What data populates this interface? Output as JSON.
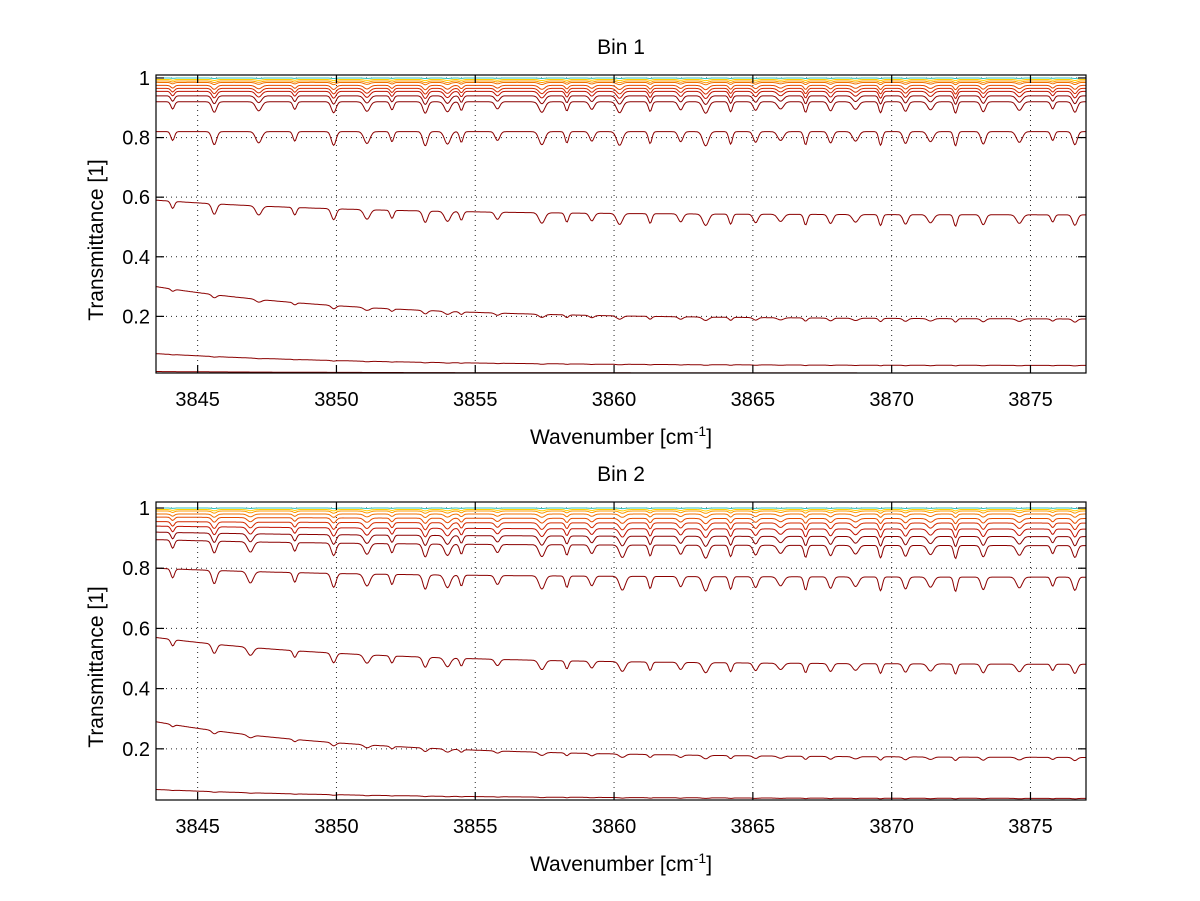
{
  "figure": {
    "background": "#ffffff",
    "line_colors": [
      "#8b0000",
      "#c01000",
      "#d42a00",
      "#e64c00",
      "#f07000",
      "#ff9a00",
      "#ffd000",
      "#30c0c0",
      "#3050d0"
    ]
  },
  "chart_data": [
    {
      "type": "line",
      "title": "Bin 1",
      "xlabel": "Wavenumber [cm",
      "xlabel_superscript": "-1",
      "xlabel_suffix": "]",
      "ylabel": "Transmittance [1]",
      "xlim": [
        3843.5,
        3877
      ],
      "ylim": [
        0.01,
        1.01
      ],
      "xticks": [
        3845,
        3850,
        3855,
        3860,
        3865,
        3870,
        3875
      ],
      "xtick_labels": [
        "3845",
        "3850",
        "3855",
        "3860",
        "3865",
        "3870",
        "3875"
      ],
      "yticks": [
        0.2,
        0.4,
        0.6,
        0.8,
        1
      ],
      "ytick_labels": [
        "0.2",
        "0.4",
        "0.6",
        "0.8",
        "1"
      ],
      "grid": true,
      "absorption_lines": [
        3844.1,
        3845.6,
        3847.2,
        3848.5,
        3849.9,
        3851.1,
        3852.0,
        3853.2,
        3854.0,
        3854.5,
        3855.8,
        3857.4,
        3858.3,
        3859.2,
        3860.2,
        3861.3,
        3862.4,
        3863.3,
        3864.2,
        3865.1,
        3866.0,
        3866.9,
        3867.8,
        3868.7,
        3869.6,
        3870.5,
        3871.4,
        3872.3,
        3873.3,
        3874.6,
        3875.8,
        3876.6
      ],
      "series": [
        {
          "baseline_start": 1.0,
          "baseline_end": 1.0,
          "depth": 0.002
        },
        {
          "baseline_start": 0.995,
          "baseline_end": 0.995,
          "depth": 0.004
        },
        {
          "baseline_start": 0.99,
          "baseline_end": 0.99,
          "depth": 0.006
        },
        {
          "baseline_start": 0.985,
          "baseline_end": 0.985,
          "depth": 0.008
        },
        {
          "baseline_start": 0.975,
          "baseline_end": 0.975,
          "depth": 0.015
        },
        {
          "baseline_start": 0.965,
          "baseline_end": 0.965,
          "depth": 0.02
        },
        {
          "baseline_start": 0.955,
          "baseline_end": 0.955,
          "depth": 0.025
        },
        {
          "baseline_start": 0.94,
          "baseline_end": 0.94,
          "depth": 0.03
        },
        {
          "baseline_start": 0.92,
          "baseline_end": 0.92,
          "depth": 0.04
        },
        {
          "baseline_start": 0.82,
          "baseline_end": 0.82,
          "depth": 0.05
        },
        {
          "baseline_start": 0.59,
          "baseline_end": 0.54,
          "depth": 0.04
        },
        {
          "baseline_start": 0.3,
          "baseline_end": 0.19,
          "depth": 0.012
        },
        {
          "baseline_start": 0.075,
          "baseline_end": 0.035,
          "depth": 0.002
        },
        {
          "baseline_start": 0.015,
          "baseline_end": 0.01,
          "depth": 0.0
        }
      ]
    },
    {
      "type": "line",
      "title": "Bin 2",
      "xlabel": "Wavenumber [cm",
      "xlabel_superscript": "-1",
      "xlabel_suffix": "]",
      "ylabel": "Transmittance [1]",
      "xlim": [
        3843.5,
        3877
      ],
      "ylim": [
        0.03,
        1.02
      ],
      "xticks": [
        3845,
        3850,
        3855,
        3860,
        3865,
        3870,
        3875
      ],
      "xtick_labels": [
        "3845",
        "3850",
        "3855",
        "3860",
        "3865",
        "3870",
        "3875"
      ],
      "yticks": [
        0.2,
        0.4,
        0.6,
        0.8,
        1
      ],
      "ytick_labels": [
        "0.2",
        "0.4",
        "0.6",
        "0.8",
        "1"
      ],
      "grid": true,
      "absorption_lines": [
        3844.1,
        3845.6,
        3846.9,
        3848.5,
        3849.9,
        3851.1,
        3852.0,
        3853.2,
        3854.0,
        3854.5,
        3855.8,
        3857.4,
        3858.3,
        3859.2,
        3860.3,
        3861.3,
        3862.4,
        3863.3,
        3864.2,
        3865.1,
        3866.0,
        3866.9,
        3867.8,
        3868.7,
        3869.6,
        3870.5,
        3871.4,
        3872.3,
        3873.3,
        3874.6,
        3875.8,
        3876.6
      ],
      "series": [
        {
          "baseline_start": 1.0,
          "baseline_end": 1.0,
          "depth": 0.002
        },
        {
          "baseline_start": 0.995,
          "baseline_end": 0.995,
          "depth": 0.005
        },
        {
          "baseline_start": 0.99,
          "baseline_end": 0.99,
          "depth": 0.008
        },
        {
          "baseline_start": 0.98,
          "baseline_end": 0.98,
          "depth": 0.012
        },
        {
          "baseline_start": 0.97,
          "baseline_end": 0.965,
          "depth": 0.018
        },
        {
          "baseline_start": 0.955,
          "baseline_end": 0.95,
          "depth": 0.025
        },
        {
          "baseline_start": 0.94,
          "baseline_end": 0.93,
          "depth": 0.03
        },
        {
          "baseline_start": 0.92,
          "baseline_end": 0.905,
          "depth": 0.035
        },
        {
          "baseline_start": 0.895,
          "baseline_end": 0.875,
          "depth": 0.045
        },
        {
          "baseline_start": 0.8,
          "baseline_end": 0.77,
          "depth": 0.05
        },
        {
          "baseline_start": 0.57,
          "baseline_end": 0.48,
          "depth": 0.035
        },
        {
          "baseline_start": 0.29,
          "baseline_end": 0.17,
          "depth": 0.012
        },
        {
          "baseline_start": 0.065,
          "baseline_end": 0.035,
          "depth": 0.002
        }
      ]
    }
  ]
}
